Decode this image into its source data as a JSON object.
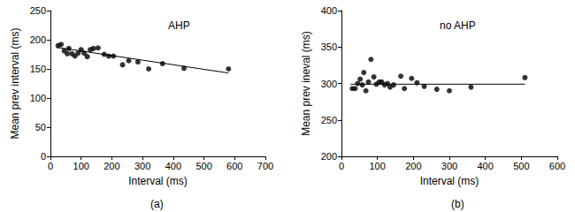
{
  "chart_data": [
    {
      "type": "scatter",
      "title": "AHP",
      "subtitle": "(a)",
      "x_label": "Interval (ms)",
      "y_label": "Mean prev interval (ms)",
      "x": [
        25,
        35,
        45,
        55,
        60,
        70,
        80,
        90,
        100,
        110,
        120,
        130,
        140,
        155,
        175,
        190,
        205,
        235,
        255,
        285,
        320,
        365,
        435,
        580
      ],
      "values": [
        190,
        192,
        181,
        176,
        185,
        176,
        172,
        177,
        183,
        177,
        171,
        183,
        185,
        186,
        175,
        172,
        172,
        157,
        164,
        162,
        150,
        159,
        151,
        150
      ],
      "fit": {
        "x": [
          20,
          580
        ],
        "y": [
          187,
          143
        ]
      },
      "xlim": [
        0,
        700
      ],
      "xticks": [
        0,
        100,
        200,
        300,
        400,
        500,
        600,
        700
      ],
      "ylim": [
        0,
        250
      ],
      "yticks": [
        0,
        50,
        100,
        150,
        200,
        250
      ],
      "color": "#000000",
      "marker": "circle",
      "line_style": "solid",
      "grid": false
    },
    {
      "type": "scatter",
      "title": "no AHP",
      "subtitle": "(b)",
      "x_label": "Interval (ms)",
      "y_label": "Mean prev ineval (ms)",
      "x": [
        30,
        38,
        45,
        52,
        58,
        62,
        68,
        75,
        82,
        90,
        97,
        105,
        112,
        120,
        128,
        135,
        145,
        165,
        175,
        195,
        210,
        230,
        265,
        300,
        360,
        510
      ],
      "values": [
        293,
        293,
        300,
        306,
        298,
        315,
        290,
        302,
        333,
        309,
        299,
        302,
        302,
        298,
        300,
        295,
        298,
        310,
        293,
        307,
        301,
        296,
        292,
        290,
        295,
        308
      ],
      "fit": {
        "x": [
          25,
          510
        ],
        "y": [
          299,
          299
        ]
      },
      "xlim": [
        0,
        600
      ],
      "xticks": [
        0,
        100,
        200,
        300,
        400,
        500,
        600
      ],
      "ylim": [
        200,
        400
      ],
      "yticks": [
        200,
        250,
        300,
        350,
        400
      ],
      "color": "#000000",
      "marker": "circle",
      "line_style": "solid",
      "grid": false
    }
  ]
}
